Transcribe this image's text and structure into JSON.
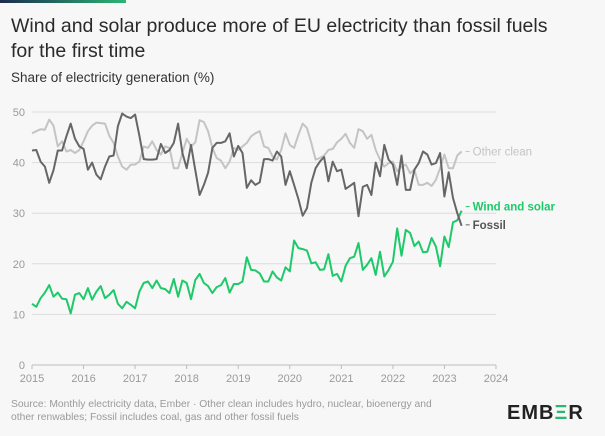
{
  "chart_data": {
    "type": "line",
    "title": "Wind and solar produce more of EU electricity than fossil fuels for the first time",
    "subtitle": "Share of electricity generation (%)",
    "x_start": "2015-01",
    "x_end": "2023-05",
    "x_frequency": "monthly",
    "xlim": [
      2015,
      2024
    ],
    "ylim": [
      0,
      50
    ],
    "x_ticks": [
      "2015",
      "2016",
      "2017",
      "2018",
      "2019",
      "2020",
      "2021",
      "2022",
      "2023",
      "2024"
    ],
    "y_ticks": [
      "0",
      "10",
      "20",
      "30",
      "40",
      "50"
    ],
    "grid": "horizontal",
    "legend": "inline-right",
    "series": [
      {
        "name": "Other clean",
        "color": "#c4c4c4",
        "values": [
          45.8,
          46.2,
          46.6,
          46.5,
          48.5,
          47.3,
          43.2,
          44.2,
          42.2,
          42.5,
          41.9,
          42.5,
          44.2,
          46.2,
          47.3,
          47.9,
          47.8,
          47.7,
          45.3,
          43.9,
          41.2,
          39.2,
          38.6,
          39.6,
          39.6,
          40.2,
          43.2,
          42.9,
          44.2,
          42.5,
          41.6,
          43.2,
          42.9,
          38.9,
          38.9,
          41.9,
          44.7,
          43.2,
          44.0,
          48.4,
          48.0,
          46.2,
          42.9,
          40.9,
          40.4,
          38.9,
          40.2,
          42.9,
          42.5,
          43.2,
          43.9,
          45.2,
          45.8,
          46.2,
          43.2,
          42.9,
          41.2,
          40.6,
          42.5,
          45.8,
          43.5,
          42.9,
          45.5,
          47.7,
          46.8,
          43.9,
          40.6,
          40.9,
          41.4,
          42.5,
          42.7,
          44.0,
          44.7,
          45.7,
          43.9,
          42.9,
          46.6,
          46.2,
          44.7,
          45.5,
          42.5,
          40.6,
          39.2,
          39.9,
          40.2,
          38.3,
          39.2,
          39.6,
          37.9,
          38.6,
          35.6,
          35.6,
          36.0,
          35.4,
          36.6,
          38.9,
          41.6,
          38.9,
          38.9,
          41.4,
          42.2
        ]
      },
      {
        "name": "Wind and solar",
        "color": "#1ec96a",
        "values": [
          12.1,
          11.5,
          13.2,
          14.3,
          15.8,
          13.5,
          14.3,
          13.1,
          13.0,
          10.2,
          13.9,
          14.2,
          13.0,
          15.2,
          12.9,
          14.5,
          15.6,
          13.2,
          13.9,
          14.8,
          12.1,
          11.2,
          12.5,
          11.9,
          11.2,
          14.5,
          16.2,
          16.5,
          15.2,
          16.7,
          15.2,
          15.0,
          14.2,
          17.0,
          13.5,
          16.7,
          16.2,
          13.0,
          16.8,
          18.0,
          16.2,
          15.6,
          14.2,
          15.4,
          15.8,
          17.2,
          14.3,
          16.0,
          16.0,
          16.5,
          21.3,
          18.8,
          18.7,
          18.1,
          16.5,
          16.5,
          18.5,
          17.3,
          16.7,
          19.3,
          18.5,
          24.6,
          23.1,
          22.9,
          22.6,
          20.1,
          20.3,
          18.8,
          18.9,
          21.9,
          17.6,
          18.0,
          16.5,
          19.6,
          21.1,
          21.4,
          24.1,
          18.8,
          19.8,
          21.1,
          17.8,
          22.4,
          17.5,
          18.8,
          20.4,
          27.0,
          21.6,
          26.7,
          26.1,
          23.5,
          24.4,
          22.3,
          22.4,
          25.1,
          23.4,
          19.5,
          25.4,
          23.3,
          28.2,
          28.6,
          30.5
        ]
      },
      {
        "name": "Fossil",
        "color": "#666666",
        "values": [
          42.4,
          42.5,
          40.2,
          39.2,
          36.0,
          38.5,
          42.4,
          42.4,
          45.2,
          47.7,
          44.7,
          43.2,
          42.7,
          38.6,
          40.0,
          37.6,
          36.7,
          39.2,
          41.2,
          41.4,
          47.2,
          49.7,
          49.1,
          48.8,
          49.5,
          45.3,
          40.7,
          40.6,
          40.6,
          40.7,
          43.7,
          41.9,
          42.5,
          43.9,
          47.7,
          41.9,
          38.9,
          43.5,
          38.5,
          33.6,
          35.6,
          38.0,
          42.9,
          43.9,
          43.9,
          44.2,
          45.8,
          41.2,
          43.3,
          41.9,
          35.0,
          36.5,
          35.6,
          36.1,
          40.7,
          40.7,
          40.4,
          42.2,
          41.2,
          35.6,
          38.3,
          35.6,
          32.8,
          29.5,
          31.0,
          36.0,
          38.9,
          40.2,
          41.1,
          36.3,
          40.2,
          38.3,
          38.6,
          34.8,
          35.4,
          36.0,
          29.4,
          35.2,
          35.6,
          33.6,
          40.0,
          37.3,
          43.5,
          40.6,
          39.6,
          35.6,
          41.4,
          34.6,
          34.6,
          38.6,
          39.9,
          42.2,
          41.6,
          39.6,
          39.9,
          41.9,
          33.3,
          38.1,
          33.0,
          30.0,
          27.5
        ]
      }
    ],
    "source": "Source: Monthly electricity data, Ember · Other clean includes hydro, nuclear, bioenergy and other renwables; Fossil includes coal, gas and other fossil fuels"
  },
  "brand": {
    "logo_text": "EMBER",
    "accent": "#2bb673"
  }
}
